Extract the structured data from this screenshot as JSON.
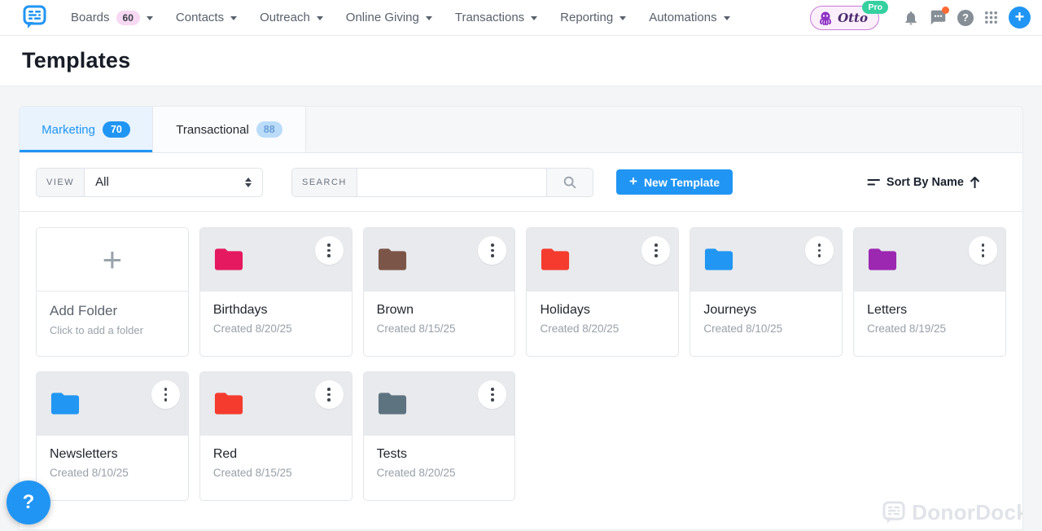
{
  "colors": {
    "accent": "#2095f3",
    "nav_badge_bg": "#f7d9f3",
    "tab_active_bg": "#e8f3fe",
    "card_top_bg": "#e8eaed",
    "pro_badge": "#35d0a0",
    "notification_dot": "#ff6a33"
  },
  "header": {
    "nav": [
      {
        "label": "Boards",
        "badge": "60"
      },
      {
        "label": "Contacts",
        "badge": ""
      },
      {
        "label": "Outreach",
        "badge": ""
      },
      {
        "label": "Online Giving",
        "badge": ""
      },
      {
        "label": "Transactions",
        "badge": ""
      },
      {
        "label": "Reporting",
        "badge": ""
      },
      {
        "label": "Automations",
        "badge": ""
      }
    ],
    "otto": {
      "label": "Otto",
      "badge": "Pro"
    },
    "icons": [
      "donordock-logo",
      "bell-icon",
      "chat-icon",
      "help-icon",
      "apps-grid-icon",
      "add-icon"
    ]
  },
  "page": {
    "title": "Templates"
  },
  "tabs": [
    {
      "label": "Marketing",
      "count": "70",
      "active": true
    },
    {
      "label": "Transactional",
      "count": "88",
      "active": false
    }
  ],
  "filters": {
    "view_label": "VIEW",
    "view_value": "All",
    "search_label": "SEARCH",
    "search_value": "",
    "search_placeholder": ""
  },
  "actions": {
    "new_template_label": "New Template",
    "sort_label": "Sort By Name"
  },
  "folders": {
    "add": {
      "title": "Add Folder",
      "subtitle": "Click to add a folder"
    },
    "items": [
      {
        "name": "Birthdays",
        "created": "Created 8/20/25",
        "color": "#e5195f"
      },
      {
        "name": "Brown",
        "created": "Created 8/15/25",
        "color": "#7b5548"
      },
      {
        "name": "Holidays",
        "created": "Created 8/20/25",
        "color": "#f43b2e"
      },
      {
        "name": "Journeys",
        "created": "Created 8/10/25",
        "color": "#2196f3"
      },
      {
        "name": "Letters",
        "created": "Created 8/19/25",
        "color": "#9c27b0"
      },
      {
        "name": "Newsletters",
        "created": "Created 8/10/25",
        "color": "#2196f3"
      },
      {
        "name": "Red",
        "created": "Created 8/15/25",
        "color": "#f43b2e"
      },
      {
        "name": "Tests",
        "created": "Created 8/20/25",
        "color": "#5e7380"
      }
    ]
  },
  "watermark": {
    "label": "DonorDock"
  },
  "help": {
    "label": "?"
  }
}
